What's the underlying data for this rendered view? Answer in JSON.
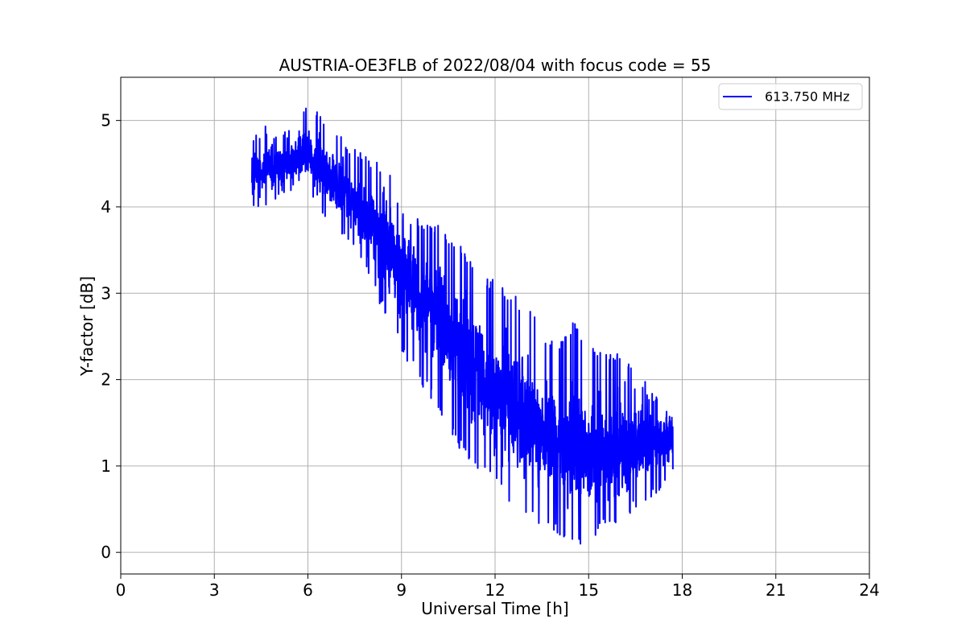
{
  "chart_data": {
    "type": "line",
    "title": "AUSTRIA-OE3FLB of 2022/08/04 with focus code = 55",
    "xlabel": "Universal Time [h]",
    "ylabel": "Y-factor [dB]",
    "xlim": [
      0,
      24
    ],
    "ylim": [
      -0.25,
      5.5
    ],
    "x_ticks": [
      0,
      3,
      6,
      9,
      12,
      15,
      18,
      21,
      24
    ],
    "y_ticks": [
      0,
      1,
      2,
      3,
      4,
      5
    ],
    "grid": true,
    "legend_position": "top-right",
    "series": [
      {
        "name": "613.750 MHz",
        "color": "#0000ff",
        "x": [
          4.2,
          4.5,
          5.0,
          5.5,
          6.0,
          6.5,
          7.0,
          7.5,
          8.0,
          8.5,
          9.0,
          9.5,
          10.0,
          10.5,
          11.0,
          11.5,
          12.0,
          12.5,
          13.0,
          13.5,
          14.0,
          14.5,
          15.0,
          15.5,
          16.0,
          16.5,
          17.0,
          17.5,
          17.7
        ],
        "y": [
          4.35,
          4.4,
          4.45,
          4.5,
          4.6,
          4.4,
          4.2,
          4.0,
          3.8,
          3.55,
          3.3,
          3.0,
          2.8,
          2.55,
          2.3,
          2.05,
          1.85,
          1.7,
          1.5,
          1.35,
          1.25,
          1.15,
          1.1,
          1.1,
          1.15,
          1.25,
          1.3,
          1.35,
          1.3
        ],
        "y_min": [
          4.0,
          4.0,
          4.05,
          4.1,
          4.2,
          3.9,
          3.65,
          3.4,
          3.1,
          2.7,
          2.3,
          2.0,
          1.75,
          1.4,
          1.1,
          0.95,
          0.75,
          0.55,
          0.45,
          0.3,
          0.2,
          0.0,
          0.05,
          0.3,
          0.25,
          0.5,
          0.6,
          0.8,
          0.85
        ],
        "y_max": [
          4.75,
          4.95,
          4.9,
          4.95,
          5.25,
          5.0,
          4.85,
          4.7,
          4.55,
          4.55,
          4.0,
          3.9,
          3.85,
          3.7,
          3.55,
          3.3,
          3.15,
          3.0,
          2.9,
          2.6,
          2.4,
          2.7,
          2.45,
          2.3,
          2.35,
          2.2,
          1.85,
          1.85,
          1.75
        ]
      }
    ]
  }
}
